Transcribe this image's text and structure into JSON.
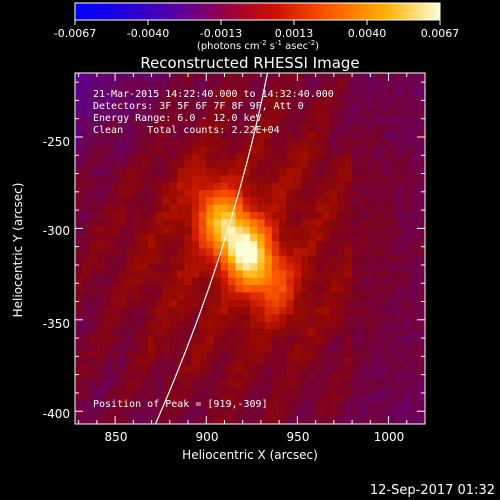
{
  "colorbar": {
    "ticks": [
      "-0.0067",
      "-0.0040",
      "-0.0013",
      "0.0013",
      "0.0040",
      "0.0067"
    ],
    "units_main": "(photons cm",
    "units_sup1": "-2",
    "units_mid1": " s",
    "units_sup2": "-1",
    "units_mid2": " asec",
    "units_sup3": "-2",
    "units_end": ")"
  },
  "chart_data": {
    "type": "heatmap",
    "title": "Reconstructed RHESSI Image",
    "xlabel": "Heliocentric X (arcsec)",
    "ylabel": "Heliocentric Y (arcsec)",
    "xlim": [
      828,
      1020
    ],
    "ylim": [
      -407,
      -215
    ],
    "xticks": [
      850,
      900,
      950,
      1000
    ],
    "yticks": [
      -250,
      -300,
      -350,
      -400
    ],
    "colorbar_range": [
      -0.0067,
      0.0067
    ],
    "peak": {
      "x": 919,
      "y": -309
    },
    "info_lines": [
      "21-Mar-2015 14:22:40.000 to 14:32:40.000",
      "Detectors: 3F 5F 6F 7F 8F 9F, Att 0",
      "Energy Range: 6.0 - 12.0 keV",
      "Clean    Total counts: 2.22E+04"
    ],
    "peak_label": "Position of Peak = [919,-309]"
  },
  "timestamp": "12-Sep-2017 01:32"
}
